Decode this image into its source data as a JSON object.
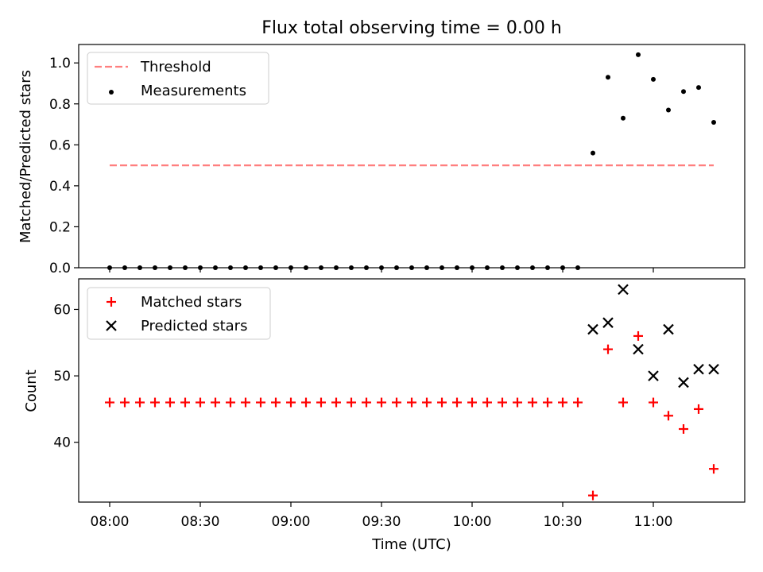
{
  "title": "Flux total observing time = 0.00 h",
  "colors": {
    "threshold": "#ff7f7f",
    "measurement": "#000000",
    "matched": "#ff0000",
    "predicted": "#000000"
  },
  "chart_data": [
    {
      "type": "scatter",
      "panel": "top",
      "ylabel": "Matched/Predicted stars",
      "ylim": [
        0,
        1.09
      ],
      "yticks": [
        "0.0",
        "0.2",
        "0.4",
        "0.6",
        "0.8",
        "1.0"
      ],
      "legend_position": "upper-left",
      "threshold": {
        "name": "Threshold",
        "value": 0.5,
        "x_start": "08:00",
        "x_end": "11:20",
        "style": "dashed"
      },
      "series": [
        {
          "name": "Measurements",
          "marker": "dot",
          "x": [
            "08:00",
            "08:05",
            "08:10",
            "08:15",
            "08:20",
            "08:25",
            "08:30",
            "08:35",
            "08:40",
            "08:45",
            "08:50",
            "08:55",
            "09:00",
            "09:05",
            "09:10",
            "09:15",
            "09:20",
            "09:25",
            "09:30",
            "09:35",
            "09:40",
            "09:45",
            "09:50",
            "09:55",
            "10:00",
            "10:05",
            "10:10",
            "10:15",
            "10:20",
            "10:25",
            "10:30",
            "10:35",
            "10:40",
            "10:45",
            "10:50",
            "10:55",
            "11:00",
            "11:05",
            "11:10",
            "11:15",
            "11:20"
          ],
          "y": [
            0,
            0,
            0,
            0,
            0,
            0,
            0,
            0,
            0,
            0,
            0,
            0,
            0,
            0,
            0,
            0,
            0,
            0,
            0,
            0,
            0,
            0,
            0,
            0,
            0,
            0,
            0,
            0,
            0,
            0,
            0,
            0,
            0.56,
            0.93,
            0.73,
            1.04,
            0.92,
            0.77,
            0.86,
            0.88,
            0.71
          ]
        }
      ]
    },
    {
      "type": "scatter",
      "panel": "bottom",
      "xlabel": "Time (UTC)",
      "ylabel": "Count",
      "ylim": [
        31,
        64.6
      ],
      "yticks": [
        "40",
        "50",
        "60"
      ],
      "xticks": [
        "08:00",
        "08:30",
        "09:00",
        "09:30",
        "10:00",
        "10:30",
        "11:00"
      ],
      "legend_position": "upper-left",
      "series": [
        {
          "name": "Matched stars",
          "marker": "plus",
          "x": [
            "08:00",
            "08:05",
            "08:10",
            "08:15",
            "08:20",
            "08:25",
            "08:30",
            "08:35",
            "08:40",
            "08:45",
            "08:50",
            "08:55",
            "09:00",
            "09:05",
            "09:10",
            "09:15",
            "09:20",
            "09:25",
            "09:30",
            "09:35",
            "09:40",
            "09:45",
            "09:50",
            "09:55",
            "10:00",
            "10:05",
            "10:10",
            "10:15",
            "10:20",
            "10:25",
            "10:30",
            "10:35",
            "10:40",
            "10:45",
            "10:50",
            "10:55",
            "11:00",
            "11:05",
            "11:10",
            "11:15",
            "11:20"
          ],
          "y": [
            46,
            46,
            46,
            46,
            46,
            46,
            46,
            46,
            46,
            46,
            46,
            46,
            46,
            46,
            46,
            46,
            46,
            46,
            46,
            46,
            46,
            46,
            46,
            46,
            46,
            46,
            46,
            46,
            46,
            46,
            46,
            46,
            32,
            54,
            46,
            56,
            46,
            44,
            42,
            45,
            36
          ]
        },
        {
          "name": "Predicted stars",
          "marker": "x",
          "x": [
            "10:40",
            "10:45",
            "10:50",
            "10:55",
            "11:00",
            "11:05",
            "11:10",
            "11:15",
            "11:20"
          ],
          "y": [
            57,
            58,
            63,
            54,
            50,
            57,
            49,
            51,
            51
          ]
        }
      ]
    }
  ]
}
